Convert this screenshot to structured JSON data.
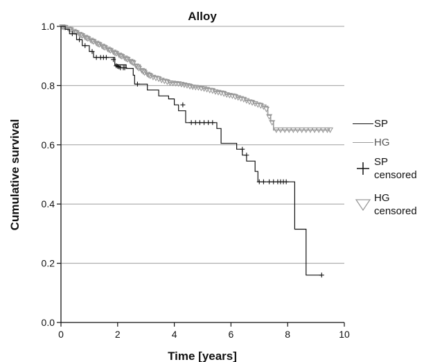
{
  "chart_data": {
    "type": "line",
    "title": "Alloy",
    "xlabel": "Time [years]",
    "ylabel": "Cumulative survival",
    "xlim": [
      0,
      10
    ],
    "ylim": [
      0.0,
      1.0
    ],
    "x_ticks": [
      "0",
      "2",
      "4",
      "6",
      "8",
      "10"
    ],
    "y_ticks": [
      "0.0",
      "0.2",
      "0.4",
      "0.6",
      "0.8",
      "1.0"
    ],
    "grid": "horizontal",
    "legend_position": "right",
    "series": [
      {
        "name": "SP",
        "color": "#111111",
        "step_points": [
          [
            0,
            1.0
          ],
          [
            0.15,
            0.99
          ],
          [
            0.3,
            0.975
          ],
          [
            0.55,
            0.955
          ],
          [
            0.75,
            0.935
          ],
          [
            1.0,
            0.915
          ],
          [
            1.15,
            0.895
          ],
          [
            1.9,
            0.87
          ],
          [
            2.3,
            0.858
          ],
          [
            2.55,
            0.835
          ],
          [
            2.6,
            0.805
          ],
          [
            3.05,
            0.785
          ],
          [
            3.45,
            0.765
          ],
          [
            3.8,
            0.755
          ],
          [
            4.0,
            0.735
          ],
          [
            4.15,
            0.715
          ],
          [
            4.4,
            0.675
          ],
          [
            5.5,
            0.655
          ],
          [
            5.65,
            0.605
          ],
          [
            6.2,
            0.585
          ],
          [
            6.4,
            0.565
          ],
          [
            6.55,
            0.545
          ],
          [
            6.85,
            0.51
          ],
          [
            6.95,
            0.475
          ],
          [
            8.25,
            0.315
          ],
          [
            8.65,
            0.16
          ],
          [
            9.2,
            0.16
          ]
        ],
        "censored": [
          [
            0.4,
            0.975
          ],
          [
            0.65,
            0.955
          ],
          [
            0.85,
            0.935
          ],
          [
            1.1,
            0.915
          ],
          [
            1.25,
            0.895
          ],
          [
            1.4,
            0.895
          ],
          [
            1.5,
            0.895
          ],
          [
            1.6,
            0.895
          ],
          [
            1.85,
            0.888
          ],
          [
            1.95,
            0.867
          ],
          [
            2.0,
            0.865
          ],
          [
            2.05,
            0.863
          ],
          [
            2.1,
            0.86
          ],
          [
            2.2,
            0.86
          ],
          [
            2.25,
            0.86
          ],
          [
            2.7,
            0.805
          ],
          [
            4.3,
            0.735
          ],
          [
            4.6,
            0.675
          ],
          [
            4.75,
            0.675
          ],
          [
            4.9,
            0.675
          ],
          [
            5.05,
            0.675
          ],
          [
            5.2,
            0.675
          ],
          [
            5.35,
            0.675
          ],
          [
            6.4,
            0.585
          ],
          [
            6.55,
            0.565
          ],
          [
            7.0,
            0.475
          ],
          [
            7.15,
            0.475
          ],
          [
            7.35,
            0.475
          ],
          [
            7.5,
            0.475
          ],
          [
            7.65,
            0.475
          ],
          [
            7.75,
            0.475
          ],
          [
            7.85,
            0.475
          ],
          [
            7.95,
            0.475
          ],
          [
            9.2,
            0.16
          ]
        ]
      },
      {
        "name": "HG",
        "color": "#9a9a9a",
        "step_points": [
          [
            0,
            1.0
          ],
          [
            0.2,
            0.995
          ],
          [
            0.4,
            0.985
          ],
          [
            0.6,
            0.975
          ],
          [
            0.8,
            0.965
          ],
          [
            1.0,
            0.955
          ],
          [
            1.2,
            0.945
          ],
          [
            1.4,
            0.935
          ],
          [
            1.6,
            0.925
          ],
          [
            1.8,
            0.915
          ],
          [
            2.0,
            0.905
          ],
          [
            2.2,
            0.895
          ],
          [
            2.4,
            0.885
          ],
          [
            2.6,
            0.87
          ],
          [
            2.8,
            0.855
          ],
          [
            3.0,
            0.84
          ],
          [
            3.2,
            0.83
          ],
          [
            3.5,
            0.82
          ],
          [
            3.8,
            0.81
          ],
          [
            4.2,
            0.805
          ],
          [
            4.6,
            0.795
          ],
          [
            5.0,
            0.79
          ],
          [
            5.4,
            0.78
          ],
          [
            5.8,
            0.77
          ],
          [
            6.2,
            0.76
          ],
          [
            6.5,
            0.75
          ],
          [
            6.8,
            0.74
          ],
          [
            7.1,
            0.73
          ],
          [
            7.3,
            0.7
          ],
          [
            7.4,
            0.68
          ],
          [
            7.5,
            0.65
          ],
          [
            9.5,
            0.65
          ]
        ],
        "censored": [
          [
            0.05,
            0.998
          ],
          [
            0.1,
            0.997
          ],
          [
            0.15,
            0.996
          ],
          [
            0.25,
            0.993
          ],
          [
            0.3,
            0.99
          ],
          [
            0.35,
            0.988
          ],
          [
            0.45,
            0.983
          ],
          [
            0.5,
            0.98
          ],
          [
            0.55,
            0.978
          ],
          [
            0.65,
            0.973
          ],
          [
            0.7,
            0.97
          ],
          [
            0.75,
            0.968
          ],
          [
            0.85,
            0.963
          ],
          [
            0.9,
            0.96
          ],
          [
            0.95,
            0.958
          ],
          [
            1.05,
            0.953
          ],
          [
            1.1,
            0.95
          ],
          [
            1.15,
            0.948
          ],
          [
            1.25,
            0.943
          ],
          [
            1.3,
            0.94
          ],
          [
            1.35,
            0.938
          ],
          [
            1.45,
            0.933
          ],
          [
            1.5,
            0.93
          ],
          [
            1.55,
            0.928
          ],
          [
            1.65,
            0.923
          ],
          [
            1.7,
            0.92
          ],
          [
            1.75,
            0.918
          ],
          [
            1.85,
            0.913
          ],
          [
            1.9,
            0.91
          ],
          [
            1.95,
            0.908
          ],
          [
            2.05,
            0.903
          ],
          [
            2.1,
            0.9
          ],
          [
            2.15,
            0.898
          ],
          [
            2.25,
            0.893
          ],
          [
            2.3,
            0.89
          ],
          [
            2.35,
            0.888
          ],
          [
            2.45,
            0.882
          ],
          [
            2.5,
            0.879
          ],
          [
            2.55,
            0.876
          ],
          [
            2.65,
            0.866
          ],
          [
            2.7,
            0.862
          ],
          [
            2.75,
            0.858
          ],
          [
            2.85,
            0.851
          ],
          [
            2.9,
            0.847
          ],
          [
            2.95,
            0.843
          ],
          [
            3.05,
            0.838
          ],
          [
            3.1,
            0.835
          ],
          [
            3.15,
            0.832
          ],
          [
            3.25,
            0.828
          ],
          [
            3.35,
            0.825
          ],
          [
            3.45,
            0.822
          ],
          [
            3.55,
            0.818
          ],
          [
            3.65,
            0.815
          ],
          [
            3.75,
            0.812
          ],
          [
            3.85,
            0.809
          ],
          [
            3.95,
            0.808
          ],
          [
            4.05,
            0.807
          ],
          [
            4.15,
            0.806
          ],
          [
            4.25,
            0.804
          ],
          [
            4.35,
            0.802
          ],
          [
            4.45,
            0.8
          ],
          [
            4.55,
            0.797
          ],
          [
            4.65,
            0.795
          ],
          [
            4.75,
            0.794
          ],
          [
            4.85,
            0.793
          ],
          [
            4.95,
            0.791
          ],
          [
            5.05,
            0.789
          ],
          [
            5.15,
            0.787
          ],
          [
            5.25,
            0.784
          ],
          [
            5.35,
            0.782
          ],
          [
            5.45,
            0.779
          ],
          [
            5.55,
            0.777
          ],
          [
            5.65,
            0.775
          ],
          [
            5.75,
            0.772
          ],
          [
            5.85,
            0.769
          ],
          [
            5.95,
            0.767
          ],
          [
            6.05,
            0.765
          ],
          [
            6.15,
            0.762
          ],
          [
            6.25,
            0.759
          ],
          [
            6.35,
            0.756
          ],
          [
            6.45,
            0.753
          ],
          [
            6.55,
            0.749
          ],
          [
            6.65,
            0.745
          ],
          [
            6.75,
            0.742
          ],
          [
            6.85,
            0.739
          ],
          [
            6.95,
            0.735
          ],
          [
            7.05,
            0.732
          ],
          [
            7.15,
            0.728
          ],
          [
            7.25,
            0.72
          ],
          [
            7.35,
            0.695
          ],
          [
            7.45,
            0.675
          ],
          [
            7.6,
            0.65
          ],
          [
            7.75,
            0.65
          ],
          [
            7.9,
            0.65
          ],
          [
            8.05,
            0.65
          ],
          [
            8.2,
            0.65
          ],
          [
            8.35,
            0.65
          ],
          [
            8.5,
            0.65
          ],
          [
            8.65,
            0.65
          ],
          [
            8.8,
            0.65
          ],
          [
            8.95,
            0.65
          ],
          [
            9.1,
            0.65
          ],
          [
            9.25,
            0.65
          ],
          [
            9.4,
            0.65
          ],
          [
            9.5,
            0.65
          ]
        ]
      }
    ],
    "legend": [
      {
        "label": "SP",
        "symbol": "line",
        "color": "#111111"
      },
      {
        "label": "HG",
        "symbol": "line",
        "color": "#9a9a9a"
      },
      {
        "label": "SP\ncensored",
        "symbol": "cross",
        "color": "#111111"
      },
      {
        "label": "HG\ncensored",
        "symbol": "triangle",
        "color": "#9a9a9a"
      }
    ]
  }
}
